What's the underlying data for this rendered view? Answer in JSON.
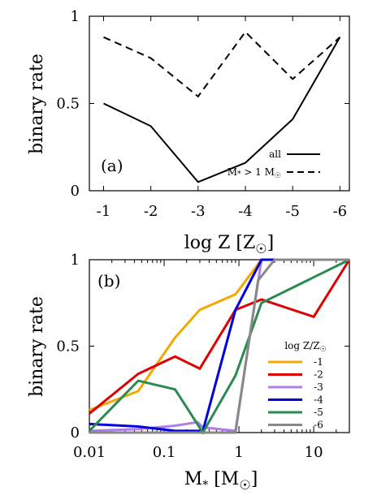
{
  "chart_data": [
    {
      "type": "line",
      "panel_label": "(a)",
      "xlabel_main": "log Z [Z",
      "xlabel_close": "]",
      "ylabel": "binary rate",
      "x": [
        -1,
        -2,
        -3,
        -4,
        -5,
        -6
      ],
      "x_tick_labels": [
        "-1",
        "-2",
        "-3",
        "-4",
        "-5",
        "-6"
      ],
      "y_tick_labels": [
        "0",
        "0.5",
        "1"
      ],
      "y_ticks": [
        0,
        0.5,
        1
      ],
      "xlim": [
        -0.7,
        -6.2
      ],
      "ylim": [
        0,
        1
      ],
      "legend_position": "bottom-right",
      "series": [
        {
          "name": "all",
          "style": "solid",
          "color": "#000000",
          "values": [
            0.5,
            0.37,
            0.05,
            0.16,
            0.41,
            0.88
          ]
        },
        {
          "name": "M",
          "name_sub": "*",
          "name_rest": " > 1 M",
          "style": "dashed",
          "color": "#000000",
          "values": [
            0.88,
            0.76,
            0.54,
            0.91,
            0.64,
            0.88
          ]
        }
      ]
    },
    {
      "type": "line",
      "panel_label": "(b)",
      "xlabel_main": "M",
      "xlabel_sub": "*",
      "xlabel_mid": " [M",
      "xlabel_close": "]",
      "ylabel": "binary rate",
      "x_scale": "log",
      "xlim": [
        0.01,
        30
      ],
      "ylim": [
        0,
        1
      ],
      "x_ticks": [
        0.01,
        0.1,
        1,
        10
      ],
      "x_tick_labels": [
        "0.01",
        "0.1",
        "1",
        "10"
      ],
      "y_ticks": [
        0,
        0.5,
        1
      ],
      "y_tick_labels": [
        "0",
        "0.5",
        "1"
      ],
      "legend_title": "log Z/Z",
      "legend_position": "right",
      "series": [
        {
          "name": "-1",
          "color": "#f5a800",
          "x": [
            0.01,
            0.045,
            0.14,
            0.3,
            0.9,
            2,
            30
          ],
          "values": [
            0.13,
            0.24,
            0.55,
            0.71,
            0.8,
            1.0,
            1.0
          ]
        },
        {
          "name": "-2",
          "color": "#e00000",
          "x": [
            0.01,
            0.045,
            0.14,
            0.3,
            0.9,
            2,
            10,
            30
          ],
          "values": [
            0.11,
            0.34,
            0.44,
            0.37,
            0.71,
            0.77,
            0.67,
            1.0
          ]
        },
        {
          "name": "-3",
          "color": "#b07ce6",
          "x": [
            0.01,
            0.045,
            0.14,
            0.28,
            0.33,
            0.9,
            2,
            30
          ],
          "values": [
            0.01,
            0.02,
            0.04,
            0.06,
            0.03,
            0.01,
            1.0,
            1.0
          ]
        },
        {
          "name": "-4",
          "color": "#0000e0",
          "x": [
            0.01,
            0.045,
            0.14,
            0.33,
            0.9,
            2,
            30
          ],
          "values": [
            0.05,
            0.035,
            0.01,
            0.01,
            0.71,
            1.0,
            1.0
          ]
        },
        {
          "name": "-5",
          "color": "#2a8a50",
          "x": [
            0.01,
            0.045,
            0.14,
            0.33,
            0.9,
            2,
            30
          ],
          "values": [
            0.01,
            0.3,
            0.25,
            0.0,
            0.33,
            0.75,
            1.0
          ]
        },
        {
          "name": "-6",
          "color": "#888888",
          "x": [
            0.01,
            0.14,
            0.33,
            0.9,
            1.8,
            3,
            30
          ],
          "values": [
            0.0,
            0.0,
            0.0,
            0.0,
            0.88,
            1.0,
            1.0
          ]
        }
      ]
    }
  ]
}
